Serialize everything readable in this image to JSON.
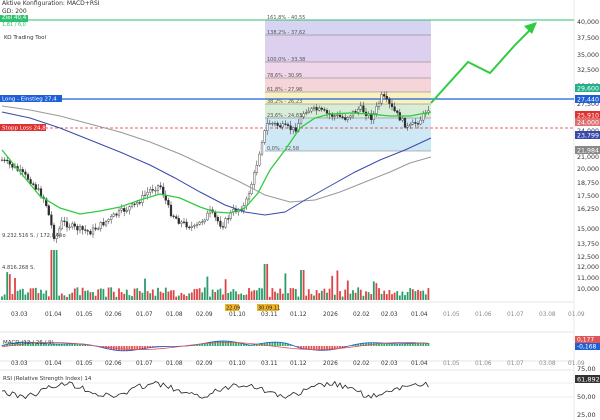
{
  "header": {
    "config_line": "Aktive Konfiguration: MACD+RSI",
    "gd_line": "GD: 200",
    "zel_label": "Ziel 40,4",
    "zel_sub": "1,81 / 6,0",
    "tool_label": "KO Trading Tool"
  },
  "colors": {
    "target_line": "#2fbf71",
    "entry_line": "#1e5fd8",
    "stop_line": "#e03030",
    "ma_green": "#2ecc40",
    "ma_blue": "#3949ab",
    "ma_gray": "#999999",
    "candle_up": "#2b2b2b",
    "candle_down": "#2b2b2b",
    "macd_pos": "#2aa86a",
    "macd_neg": "#e05555",
    "rsi_line": "#222222"
  },
  "price_axis": {
    "ticks": [
      "40,000",
      "37,500",
      "35,000",
      "32,500",
      "30,000",
      "27,500",
      "25,000",
      "24,000",
      "22,000",
      "21,000",
      "20,000",
      "18,750",
      "17,500",
      "16,250",
      "15,000",
      "13,750",
      "12,500",
      "12,000",
      "11,000",
      "10,000"
    ]
  },
  "price_badges": [
    {
      "value": "29,600",
      "color": "#26b08a"
    },
    {
      "value": "27,440",
      "color": "#1e5fd8"
    },
    {
      "value": "25,910",
      "color": "#e03030"
    },
    {
      "value": "24,000",
      "color": "#e07070"
    },
    {
      "value": "23,799",
      "color": "#3949ab"
    },
    {
      "value": "21,984",
      "color": "#888888"
    }
  ],
  "fib_levels": [
    {
      "label": "161,8% - 40,55",
      "fill": "#d6d3f3"
    },
    {
      "label": "138,2% - 37,62",
      "fill": "#ddd0ee"
    },
    {
      "label": "100,0% - 33,38",
      "fill": "#efd6e8"
    },
    {
      "label": "78,6% - 30,95",
      "fill": "#f5d5d8"
    },
    {
      "label": "61,8% - 27,98",
      "fill": "#f8f2c2"
    },
    {
      "label": "38,2% - 26,23",
      "fill": "#d8ecd8"
    },
    {
      "label": "23,6% - 24,83",
      "fill": "#cfe8f6"
    },
    {
      "label": "0,0% - 22,58",
      "fill": "#cfe8f6"
    }
  ],
  "left_tags": [
    {
      "label": "Long - Einstieg 27,4",
      "color": "#1e5fd8"
    },
    {
      "label": "Stopp Loss 24,8",
      "color": "#e03030"
    }
  ],
  "volume_labels": [
    "9.232.516 S. / 172,8 Mio",
    "4.816.268 S."
  ],
  "date_axis": [
    "03.03",
    "01.04",
    "01.05",
    "02.06",
    "01.07",
    "01.08",
    "02.09",
    "01.10",
    "03.11",
    "01.12",
    "2026",
    "02.02",
    "02.03",
    "01.04",
    "01.05",
    "01.06",
    "01.07",
    "03.08",
    "01.09"
  ],
  "date_markers": [
    {
      "label": "22.09",
      "color": "#f0b429"
    },
    {
      "label": "30.09.11",
      "color": "#f0b429"
    }
  ],
  "macd": {
    "label": "MACD (12 / 26 / 9)",
    "badges": [
      {
        "value": "0,177",
        "color": "#e05555"
      },
      {
        "value": "-0,168",
        "color": "#1e5fd8"
      }
    ]
  },
  "rsi": {
    "label": "RSI (Relative Strength Index) 14",
    "ticks": [
      "75,00",
      "50,00",
      "25,00"
    ],
    "badge": {
      "value": "61,892",
      "color": "#333333"
    }
  }
}
